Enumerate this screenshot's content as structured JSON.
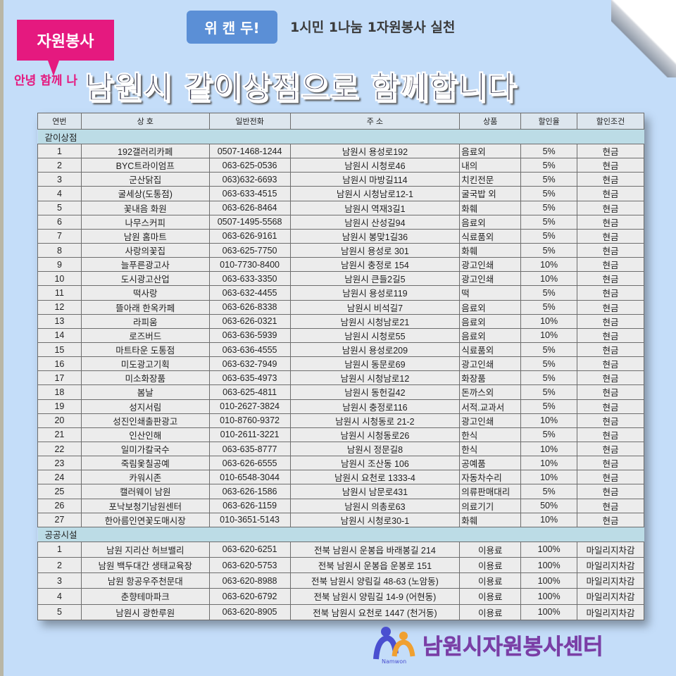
{
  "header": {
    "badge": "위 캔 두!",
    "slogan": "1시민 1나눔 1자원봉사 실천",
    "tag": "자원봉사",
    "tagline": "안녕 함께 나",
    "title": "남원시 같이상점으로 함께합니다"
  },
  "columns": [
    "연번",
    "상 호",
    "일반전화",
    "주 소",
    "상품",
    "할인율",
    "할인조건"
  ],
  "sections": [
    {
      "label": "같이상점",
      "rows": [
        [
          "1",
          "192갤러리카페",
          "0507-1468-1244",
          "남원시 용성로192",
          "음료외",
          "5%",
          "현금"
        ],
        [
          "2",
          "BYC트라이엄프",
          "063-625-0536",
          "남원시 시청로46",
          "내의",
          "5%",
          "현금"
        ],
        [
          "3",
          "군산닭집",
          "063)632-6693",
          "남원시 마방길114",
          "치킨전문",
          "5%",
          "현금"
        ],
        [
          "4",
          "굴세상(도통점)",
          "063-633-4515",
          "남원시 시청남로12-1",
          "굴국밥 외",
          "5%",
          "현금"
        ],
        [
          "5",
          "꽃내음 화원",
          "063-626-8464",
          "남원시 역재3길1",
          "화훼",
          "5%",
          "현금"
        ],
        [
          "6",
          "나무스커피",
          "0507-1495-5568",
          "남원시 산성길94",
          "음료외",
          "5%",
          "현금"
        ],
        [
          "7",
          "남원 홈마트",
          "063-626-9161",
          "남원시 봉맞1길36",
          "식료품외",
          "5%",
          "현금"
        ],
        [
          "8",
          "사랑의꽃집",
          "063-625-7750",
          "남원시 용성로 301",
          "화훼",
          "5%",
          "현금"
        ],
        [
          "9",
          "늘푸른광고사",
          "010-7730-8400",
          "남원시 충정로 154",
          "광고인쇄",
          "10%",
          "현금"
        ],
        [
          "10",
          "도시광고산업",
          "063-633-3350",
          "남원시 큰들2길5",
          "광고인쇄",
          "10%",
          "현금"
        ],
        [
          "11",
          "떡사랑",
          "063-632-4455",
          "남원시 용성로119",
          "떡",
          "5%",
          "현금"
        ],
        [
          "12",
          "뜰아래 한옥카페",
          "063-626-8338",
          "남원시 비석길7",
          "음료외",
          "5%",
          "현금"
        ],
        [
          "13",
          "라피움",
          "063-626-0321",
          "남원시 시청남로21",
          "음료외",
          "10%",
          "현금"
        ],
        [
          "14",
          "로즈버드",
          "063-636-5939",
          "남원시 시청로55",
          "음료외",
          "10%",
          "현금"
        ],
        [
          "15",
          "마트타운 도통점",
          "063-636-4555",
          "남원시 용성로209",
          "식료품외",
          "5%",
          "현금"
        ],
        [
          "16",
          "미도광고기획",
          "063-632-7949",
          "남원시 동문로69",
          "광고인쇄",
          "5%",
          "현금"
        ],
        [
          "17",
          "미소화장품",
          "063-635-4973",
          "남원시 시청남로12",
          "화장품",
          "5%",
          "현금"
        ],
        [
          "18",
          "봄날",
          "063-625-4811",
          "남원시 동헌길42",
          "돈까스외",
          "5%",
          "현금"
        ],
        [
          "19",
          "성지서림",
          "010-2627-3824",
          "남원시 충정로116",
          "서적.교과서",
          "5%",
          "현금"
        ],
        [
          "20",
          "성진인쇄출판광고",
          "010-8760-9372",
          "남원시 시청동로 21-2",
          "광고인쇄",
          "10%",
          "현금"
        ],
        [
          "21",
          "인산인해",
          "010-2611-3221",
          "남원시 시청동로26",
          "한식",
          "5%",
          "현금"
        ],
        [
          "22",
          "일미가칼국수",
          "063-635-8777",
          "남원시 정문길8",
          "한식",
          "10%",
          "현금"
        ],
        [
          "23",
          "죽림옻칠공예",
          "063-626-6555",
          "남원시 조산동 106",
          "공예품",
          "10%",
          "현금"
        ],
        [
          "24",
          "카워시존",
          "010-6548-3044",
          "남원시 요천로 1333-4",
          "자동차수리",
          "10%",
          "현금"
        ],
        [
          "25",
          "캘러웨이 남원",
          "063-626-1586",
          "남원시 남문로431",
          "의류판매대리",
          "5%",
          "현금"
        ],
        [
          "26",
          "포낙보청기남원센터",
          "063-626-1159",
          "남원시 의총로63",
          "의료기기",
          "50%",
          "현금"
        ],
        [
          "27",
          "한아름인연꽃도매시장",
          "010-3651-5143",
          "남원시 시청로30-1",
          "화훼",
          "10%",
          "현금"
        ]
      ]
    },
    {
      "label": "공공시설",
      "rows": [
        [
          "1",
          "남원 지리산 허브밸리",
          "063-620-6251",
          "전북 남원시 운봉읍 바래봉길 214",
          "이용료",
          "100%",
          "마일리지차감"
        ],
        [
          "2",
          "남원 백두대간 생태교육장",
          "063-620-5753",
          "전북 남원시 운봉읍 운봉로 151",
          "이용료",
          "100%",
          "마일리지차감"
        ],
        [
          "3",
          "남원 항공우주천문대",
          "063-620-8988",
          "전북 남원시 양림길 48-63  (노암동)",
          "이용료",
          "100%",
          "마일리지차감"
        ],
        [
          "4",
          "춘향테마파크",
          "063-620-6792",
          "전북 남원시 양림길 14-9  (어현동)",
          "이용료",
          "100%",
          "마일리지차감"
        ],
        [
          "5",
          "남원시 광한루원",
          "063-620-8905",
          "전북 남원시 요천로 1447  (천거동)",
          "이용료",
          "100%",
          "마일리지차감"
        ]
      ]
    }
  ],
  "footer": {
    "logo_text": "Namwon",
    "center_name": "남원시자원봉사센터"
  },
  "colors": {
    "background": "#c4ddf9",
    "badge": "#5b8fd6",
    "tag": "#e5197f",
    "section": "#bcdce6",
    "center": "#7a3fa6"
  }
}
